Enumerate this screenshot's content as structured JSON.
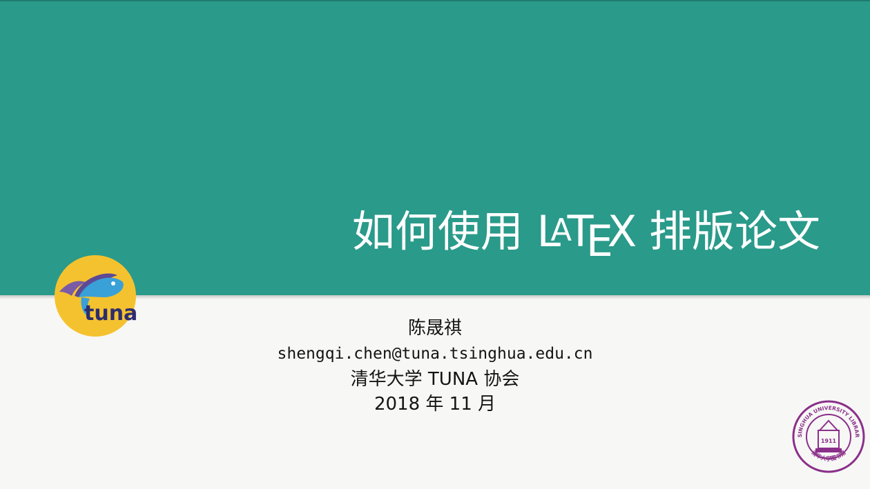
{
  "slide": {
    "title_prefix": "如何使用",
    "title_latex": [
      "L",
      "A",
      "T",
      "E",
      "X"
    ],
    "title_suffix": "排版论文",
    "author": "陈晟祺",
    "email": "shengqi.chen@tuna.tsinghua.edu.cn",
    "organization": "清华大学 TUNA 协会",
    "date": "2018 年 11 月"
  },
  "logos": {
    "tuna": {
      "text": "tuna",
      "icon": "tuna-fish-logo",
      "bg_color": "#f5c22f",
      "fish_color": "#3aa0d8",
      "fin_color": "#7b5aa6"
    },
    "seal": {
      "icon": "tsinghua-university-library-seal",
      "ring_text": "TSINGHUA UNIVERSITY LIBRARY",
      "bottom_text": "清华大学图书馆",
      "year": "1911",
      "color": "#8a2f8a"
    }
  },
  "colors": {
    "band": "#2a9a8a",
    "background": "#f7f7f5",
    "text": "#141414"
  }
}
